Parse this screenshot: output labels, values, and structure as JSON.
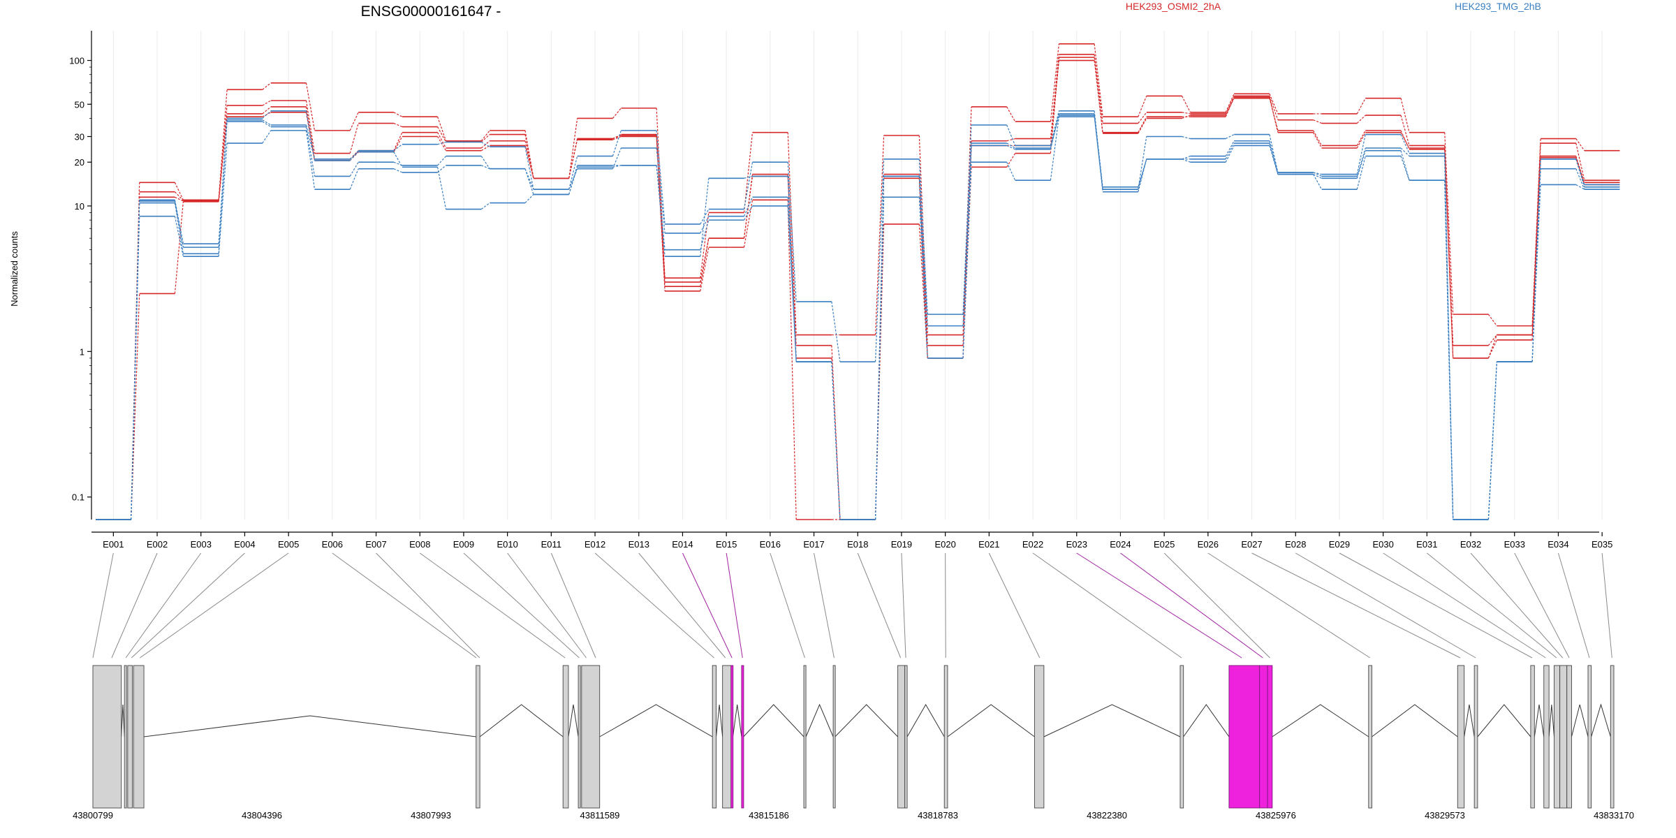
{
  "chart_data": {
    "type": "line",
    "title": "ENSG00000161647 -",
    "ylabel": "Normalized counts",
    "yscale": "log",
    "ylim": [
      0.07,
      160
    ],
    "yticks": [
      {
        "v": 0.1,
        "label": "0.1"
      },
      {
        "v": 1,
        "label": "1"
      },
      {
        "v": 10,
        "label": "10"
      },
      {
        "v": 20,
        "label": "20"
      },
      {
        "v": 30,
        "label": "30"
      },
      {
        "v": 50,
        "label": "50"
      },
      {
        "v": 100,
        "label": "100"
      }
    ],
    "colors": {
      "conditionA": "#d62728",
      "conditionB": "#3a7fc1",
      "highlight": "#ee22dd",
      "exon": "#d3d3d3"
    },
    "legend": [
      {
        "label": "HEK293_OSMI2_2hA",
        "color": "#d62728"
      },
      {
        "label": "HEK293_TMG_2hB",
        "color": "#3a7fc1"
      }
    ],
    "categories": [
      "E001",
      "E002",
      "E003",
      "E004",
      "E005",
      "E006",
      "E007",
      "E008",
      "E009",
      "E010",
      "E011",
      "E012",
      "E013",
      "E014",
      "E015",
      "E016",
      "E017",
      "E018",
      "E019",
      "E020",
      "E021",
      "E022",
      "E023",
      "E024",
      "E025",
      "E026",
      "E027",
      "E028",
      "E029",
      "E030",
      "E031",
      "E032",
      "E033",
      "E034",
      "E035"
    ],
    "series": [
      {
        "group": "A",
        "values": [
          0.07,
          14.5,
          11,
          63,
          70,
          33,
          44,
          41,
          28,
          33,
          15.5,
          40,
          47,
          3.2,
          9,
          32,
          1.3,
          1.3,
          30.5,
          1.3,
          48,
          38,
          130,
          41,
          57,
          44,
          59,
          43,
          43,
          55,
          32,
          1.8,
          1.5,
          29,
          24
        ]
      },
      {
        "group": "A",
        "values": [
          0.07,
          12.5,
          10.9,
          49,
          53,
          23,
          37,
          35,
          27.5,
          31,
          15.5,
          29,
          31,
          3,
          6,
          16.5,
          1.1,
          0.07,
          16.5,
          1.1,
          28,
          29,
          110,
          37,
          44,
          43,
          57,
          39,
          37,
          42,
          26,
          1.1,
          1.3,
          27,
          15
        ]
      },
      {
        "group": "A",
        "values": [
          0.07,
          11.5,
          10.8,
          43,
          48,
          21,
          24,
          32,
          25,
          28,
          15.5,
          29,
          30.5,
          2.8,
          6,
          16,
          0.9,
          0.07,
          15.5,
          0.9,
          26,
          26,
          100,
          32,
          41,
          41,
          56,
          32,
          25,
          32,
          25,
          0.9,
          1.3,
          22,
          14.5
        ]
      },
      {
        "group": "A",
        "values": [
          0.07,
          2.5,
          10.7,
          41,
          44,
          20.5,
          23.5,
          30,
          24,
          26,
          15.5,
          28.5,
          30,
          2.6,
          5.2,
          11,
          0.07,
          0.07,
          7.5,
          0.9,
          18.5,
          23,
          105,
          31.5,
          40,
          42,
          55,
          33,
          26,
          33,
          24.5,
          0.9,
          1.2,
          21.5,
          14
        ]
      },
      {
        "group": "B",
        "values": [
          0.07,
          10.8,
          5.2,
          40,
          45,
          20.5,
          24,
          26.5,
          27.5,
          25.5,
          13,
          22,
          33,
          7.5,
          9.5,
          20,
          2.2,
          0.85,
          21,
          1.8,
          36,
          26,
          45,
          13,
          30,
          29,
          31,
          17,
          16.5,
          31,
          23,
          0.07,
          0.85,
          21,
          13.5
        ]
      },
      {
        "group": "B",
        "values": [
          0.07,
          10.5,
          4.7,
          38,
          35,
          16,
          20,
          19,
          22,
          18,
          13,
          18,
          25,
          6.5,
          8.5,
          11.5,
          0.85,
          0.07,
          16,
          1.5,
          27,
          25,
          42,
          12.5,
          21,
          22,
          28,
          17,
          16,
          25,
          22,
          0.07,
          0.85,
          18,
          13
        ]
      },
      {
        "group": "B",
        "values": [
          0.07,
          8.5,
          4.5,
          27,
          33,
          13,
          18,
          17,
          19,
          18,
          12,
          18.5,
          19,
          5,
          8,
          10,
          0.85,
          0.07,
          11.5,
          0.9,
          20,
          15,
          41,
          13,
          21,
          20,
          26,
          16.5,
          13,
          22,
          15,
          0.07,
          0.85,
          14,
          13
        ]
      },
      {
        "group": "B",
        "values": [
          0.07,
          11,
          5.5,
          39,
          36,
          21,
          23.5,
          18.5,
          9.5,
          10.5,
          12,
          19,
          19,
          4.5,
          15.5,
          16,
          0.85,
          0.07,
          16,
          0.9,
          26,
          24.5,
          43,
          13.5,
          21,
          21,
          27,
          16.5,
          15.5,
          24,
          15,
          0.07,
          0.85,
          21,
          14
        ]
      }
    ],
    "x_axis_coordinates": [
      {
        "v": 43800799,
        "label": "43800799"
      },
      {
        "v": 43804396,
        "label": "43804396"
      },
      {
        "v": 43807993,
        "label": "43807993"
      },
      {
        "v": 43811589,
        "label": "43811589"
      },
      {
        "v": 43815186,
        "label": "43815186"
      },
      {
        "v": 43818783,
        "label": "43818783"
      },
      {
        "v": 43822380,
        "label": "43822380"
      },
      {
        "v": 43825976,
        "label": "43825976"
      },
      {
        "v": 43829573,
        "label": "43829573"
      },
      {
        "v": 43833170,
        "label": "43833170"
      }
    ],
    "gene_range": [
      43800799,
      43833170
    ],
    "exons": [
      {
        "start": 43800799,
        "end": 43801405,
        "hl": false
      },
      {
        "start": 43801470,
        "end": 43801510,
        "hl": false
      },
      {
        "start": 43801540,
        "end": 43801640,
        "hl": false
      },
      {
        "start": 43801665,
        "end": 43801885,
        "hl": false
      },
      {
        "start": 43808955,
        "end": 43809035,
        "hl": false
      },
      {
        "start": 43810805,
        "end": 43810920,
        "hl": false
      },
      {
        "start": 43811130,
        "end": 43811175,
        "hl": false
      },
      {
        "start": 43811200,
        "end": 43811585,
        "hl": false
      },
      {
        "start": 43813985,
        "end": 43814065,
        "hl": false
      },
      {
        "start": 43814200,
        "end": 43814380,
        "hl": false
      },
      {
        "start": 43814380,
        "end": 43814420,
        "hl": true
      },
      {
        "start": 43814605,
        "end": 43814645,
        "hl": true
      },
      {
        "start": 43815930,
        "end": 43815975,
        "hl": false
      },
      {
        "start": 43816555,
        "end": 43816595,
        "hl": false
      },
      {
        "start": 43817930,
        "end": 43818080,
        "hl": false
      },
      {
        "start": 43818080,
        "end": 43818130,
        "hl": false
      },
      {
        "start": 43818920,
        "end": 43818990,
        "hl": false
      },
      {
        "start": 43820840,
        "end": 43821040,
        "hl": false
      },
      {
        "start": 43823940,
        "end": 43824010,
        "hl": false
      },
      {
        "start": 43824980,
        "end": 43825630,
        "hl": true
      },
      {
        "start": 43825630,
        "end": 43825800,
        "hl": true
      },
      {
        "start": 43825800,
        "end": 43825900,
        "hl": true
      },
      {
        "start": 43827950,
        "end": 43828020,
        "hl": false
      },
      {
        "start": 43829845,
        "end": 43829985,
        "hl": false
      },
      {
        "start": 43830200,
        "end": 43830270,
        "hl": false
      },
      {
        "start": 43831400,
        "end": 43831480,
        "hl": false
      },
      {
        "start": 43831680,
        "end": 43831790,
        "hl": false
      },
      {
        "start": 43831900,
        "end": 43832020,
        "hl": false
      },
      {
        "start": 43832020,
        "end": 43832170,
        "hl": false
      },
      {
        "start": 43832170,
        "end": 43832270,
        "hl": false
      },
      {
        "start": 43832620,
        "end": 43832690,
        "hl": false
      },
      {
        "start": 43833100,
        "end": 43833170,
        "hl": false
      }
    ],
    "exon_connections": [
      {
        "bin": "E001",
        "pos": 43800799,
        "hl": false
      },
      {
        "bin": "E002",
        "pos": 43801200,
        "hl": false
      },
      {
        "bin": "E003",
        "pos": 43801500,
        "hl": false
      },
      {
        "bin": "E004",
        "pos": 43801620,
        "hl": false
      },
      {
        "bin": "E005",
        "pos": 43801800,
        "hl": false
      },
      {
        "bin": "E006",
        "pos": 43808960,
        "hl": false
      },
      {
        "bin": "E007",
        "pos": 43809030,
        "hl": false
      },
      {
        "bin": "E008",
        "pos": 43810850,
        "hl": false
      },
      {
        "bin": "E009",
        "pos": 43811150,
        "hl": false
      },
      {
        "bin": "E010",
        "pos": 43811300,
        "hl": false
      },
      {
        "bin": "E011",
        "pos": 43811500,
        "hl": false
      },
      {
        "bin": "E012",
        "pos": 43814020,
        "hl": false
      },
      {
        "bin": "E013",
        "pos": 43814260,
        "hl": false
      },
      {
        "bin": "E014",
        "pos": 43814400,
        "hl": true
      },
      {
        "bin": "E015",
        "pos": 43814625,
        "hl": true
      },
      {
        "bin": "E016",
        "pos": 43815950,
        "hl": false
      },
      {
        "bin": "E017",
        "pos": 43816575,
        "hl": false
      },
      {
        "bin": "E018",
        "pos": 43817990,
        "hl": false
      },
      {
        "bin": "E019",
        "pos": 43818100,
        "hl": false
      },
      {
        "bin": "E020",
        "pos": 43818950,
        "hl": false
      },
      {
        "bin": "E021",
        "pos": 43820950,
        "hl": false
      },
      {
        "bin": "E022",
        "pos": 43823970,
        "hl": false
      },
      {
        "bin": "E023",
        "pos": 43825250,
        "hl": true
      },
      {
        "bin": "E024",
        "pos": 43825700,
        "hl": true
      },
      {
        "bin": "E025",
        "pos": 43825850,
        "hl": false
      },
      {
        "bin": "E026",
        "pos": 43827980,
        "hl": false
      },
      {
        "bin": "E027",
        "pos": 43829900,
        "hl": false
      },
      {
        "bin": "E028",
        "pos": 43830230,
        "hl": false
      },
      {
        "bin": "E029",
        "pos": 43831430,
        "hl": false
      },
      {
        "bin": "E030",
        "pos": 43831720,
        "hl": false
      },
      {
        "bin": "E031",
        "pos": 43831950,
        "hl": false
      },
      {
        "bin": "E032",
        "pos": 43832080,
        "hl": false
      },
      {
        "bin": "E033",
        "pos": 43832220,
        "hl": false
      },
      {
        "bin": "E034",
        "pos": 43832650,
        "hl": false
      },
      {
        "bin": "E035",
        "pos": 43833130,
        "hl": false
      }
    ],
    "grid": {
      "vertical": true,
      "horizontal": false
    }
  }
}
